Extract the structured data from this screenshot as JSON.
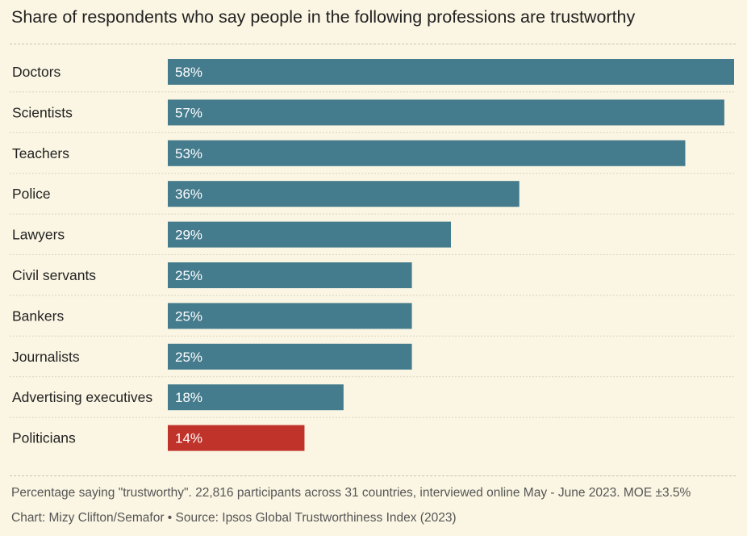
{
  "chart_data": {
    "type": "bar",
    "orientation": "horizontal",
    "title": "Share of respondents who say people in the following professions are trustworthy",
    "categories": [
      "Doctors",
      "Scientists",
      "Teachers",
      "Police",
      "Lawyers",
      "Civil servants",
      "Bankers",
      "Journalists",
      "Advertising executives",
      "Politicians"
    ],
    "values": [
      58,
      57,
      53,
      36,
      29,
      25,
      25,
      25,
      18,
      14
    ],
    "value_labels": [
      "58%",
      "57%",
      "53%",
      "36%",
      "29%",
      "25%",
      "25%",
      "25%",
      "18%",
      "14%"
    ],
    "xlim": [
      0,
      58
    ],
    "grid": false,
    "colors": {
      "default": "#447b8d",
      "highlight": "#c0332a",
      "highlight_category": "Politicians"
    }
  },
  "notes": {
    "methodology": "Percentage saying \"trustworthy\". 22,816 participants across 31 countries, interviewed online May - June 2023. MOE ±3.5%",
    "credit": "Chart: Mizy Clifton/Semafor • Source: Ipsos Global Trustworthiness Index (2023)"
  }
}
